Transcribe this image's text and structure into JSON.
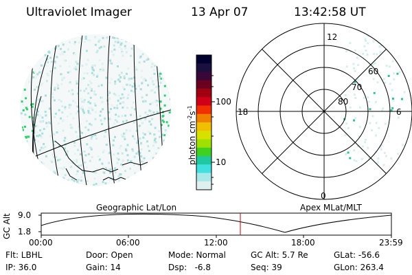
{
  "header": {
    "instrument": "Ultraviolet Imager",
    "date": "13 Apr 07",
    "time": "13:42:58 UT"
  },
  "colorbar": {
    "label": "photon cm",
    "label_sup1": "-2",
    "label_mid": "s",
    "label_sup2": "-1",
    "ticks": [
      "100",
      "10"
    ],
    "colors": [
      "#000030",
      "#1a1040",
      "#3a0838",
      "#6a0020",
      "#a00010",
      "#d00018",
      "#f03000",
      "#f08000",
      "#f0c000",
      "#d8e000",
      "#a0e000",
      "#40d020",
      "#20c8a0",
      "#40e0e0",
      "#a8e8e8",
      "#e0f0f0"
    ]
  },
  "polar": {
    "mlt_labels": [
      "12",
      "18",
      "6",
      "0"
    ],
    "mlat_labels": [
      "60",
      "70",
      "80"
    ]
  },
  "footer": {
    "left_label": "Geographic Lat/Lon",
    "right_label": "Apex MLat/MLT",
    "y_axis_label": "GC Alt",
    "y_ticks": [
      "9.0",
      "1.8"
    ],
    "x_ticks": [
      "00:00",
      "06:00",
      "12:00",
      "18:00",
      "23:59"
    ]
  },
  "info": {
    "filter": "Flt: LBHL",
    "ip": "IP: 36.0",
    "door": "Door: Open",
    "gain": "Gain: 14",
    "mode": "Mode: Normal",
    "dsp": "Dsp:   -6.8",
    "gc_alt": "GC Alt: 5.7 Re",
    "seq": "Seq: 39",
    "glat": "GLat: -56.6",
    "glon": "GLon: 263.4"
  }
}
